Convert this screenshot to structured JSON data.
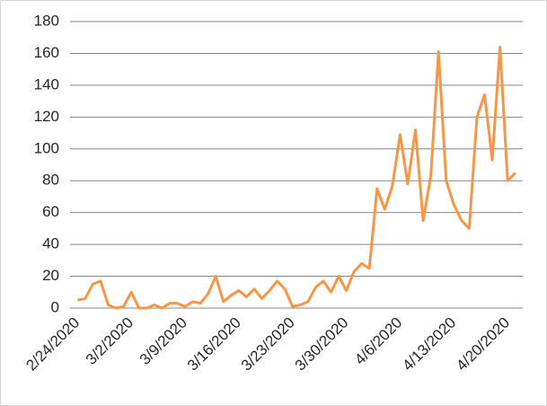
{
  "chart_data": {
    "type": "line",
    "categories": [
      "2/24/2020",
      null,
      null,
      null,
      null,
      null,
      null,
      "3/2/2020",
      null,
      null,
      null,
      null,
      null,
      null,
      "3/9/2020",
      null,
      null,
      null,
      null,
      null,
      null,
      "3/16/2020",
      null,
      null,
      null,
      null,
      null,
      null,
      "3/23/2020",
      null,
      null,
      null,
      null,
      null,
      null,
      "3/30/2020",
      null,
      null,
      null,
      null,
      null,
      null,
      "4/6/2020",
      null,
      null,
      null,
      null,
      null,
      null,
      "4/13/2020",
      null,
      null,
      null,
      null,
      null,
      null,
      "4/20/2020",
      null
    ],
    "values": [
      5,
      6,
      15,
      17,
      2,
      0,
      1,
      10,
      0,
      0,
      2,
      0,
      3,
      3,
      1,
      4,
      3,
      9,
      20,
      4,
      8,
      11,
      7,
      12,
      6,
      11,
      17,
      12,
      1,
      2,
      4,
      13,
      17,
      10,
      20,
      11,
      23,
      28,
      25,
      75,
      62,
      77,
      109,
      78,
      112,
      55,
      83,
      161,
      80,
      65,
      55,
      50,
      120,
      134,
      93,
      164,
      80,
      85
    ],
    "color": "#f79646",
    "ylim": [
      0,
      180
    ],
    "yticks": [
      0,
      20,
      40,
      60,
      80,
      100,
      120,
      140,
      160,
      180
    ],
    "grid": true
  }
}
